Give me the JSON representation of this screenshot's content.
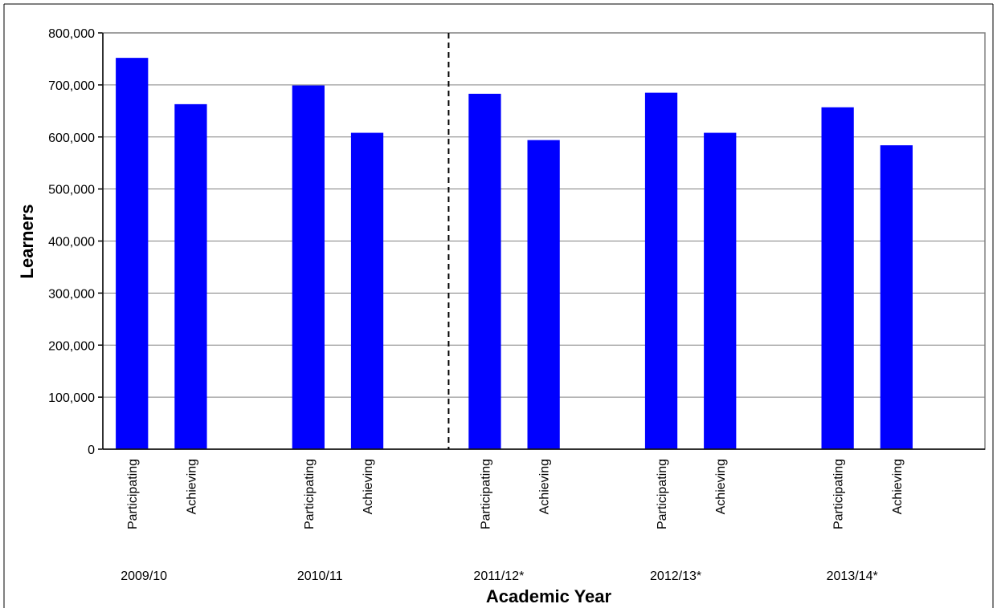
{
  "chart_data": {
    "type": "bar",
    "xlabel": "Academic Year",
    "ylabel": "Learners",
    "ylim": [
      0,
      800000
    ],
    "yticks": [
      0,
      100000,
      200000,
      300000,
      400000,
      500000,
      600000,
      700000,
      800000
    ],
    "ytick_labels": [
      "0",
      "100,000",
      "200,000",
      "300,000",
      "400,000",
      "500,000",
      "600,000",
      "700,000",
      "800,000"
    ],
    "grid": true,
    "bar_color": "#0000FF",
    "groups": [
      {
        "year": "2009/10",
        "bars": [
          {
            "label": "Participating",
            "value": 752000
          },
          {
            "label": "Achieving",
            "value": 663000
          }
        ]
      },
      {
        "year": "2010/11",
        "bars": [
          {
            "label": "Participating",
            "value": 699000
          },
          {
            "label": "Achieving",
            "value": 608000
          }
        ]
      },
      {
        "year": "2011/12*",
        "bars": [
          {
            "label": "Participating",
            "value": 683000
          },
          {
            "label": "Achieving",
            "value": 594000
          }
        ]
      },
      {
        "year": "2012/13*",
        "bars": [
          {
            "label": "Participating",
            "value": 685000
          },
          {
            "label": "Achieving",
            "value": 608000
          }
        ]
      },
      {
        "year": "2013/14*",
        "bars": [
          {
            "label": "Participating",
            "value": 657000
          },
          {
            "label": "Achieving",
            "value": 584000
          }
        ]
      }
    ],
    "divider_after_group": 1
  }
}
